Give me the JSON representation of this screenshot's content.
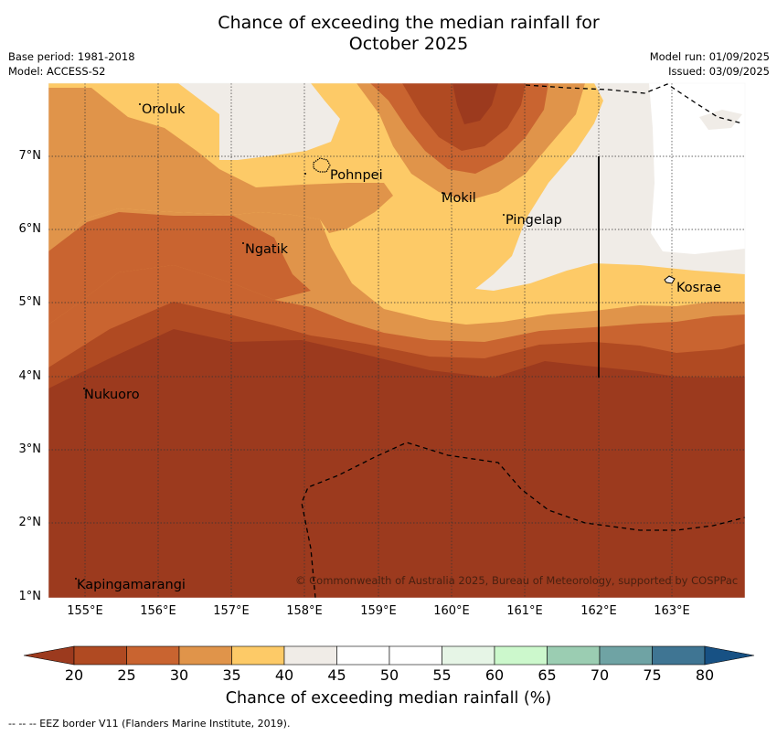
{
  "title_line1": "Chance of exceeding the median rainfall for",
  "title_line2": "October 2025",
  "meta_left": [
    "Base period: 1981-2018",
    "Model: ACCESS-S2"
  ],
  "meta_right": [
    "Model run: 01/09/2025",
    "Issued: 03/09/2025"
  ],
  "places": [
    {
      "name": "Oroluk"
    },
    {
      "name": "Pohnpei"
    },
    {
      "name": "Mokil"
    },
    {
      "name": "Pingelap"
    },
    {
      "name": "Ngatik"
    },
    {
      "name": "Kosrae"
    },
    {
      "name": "Nukuoro"
    },
    {
      "name": "Kapingamarangi"
    }
  ],
  "lat_labels": [
    "7°N",
    "6°N",
    "5°N",
    "4°N",
    "3°N",
    "2°N",
    "1°N"
  ],
  "lon_labels": [
    "155°E",
    "156°E",
    "157°E",
    "158°E",
    "159°E",
    "160°E",
    "161°E",
    "162°E",
    "163°E"
  ],
  "copyright": "© Commonwealth of Australia 2025, Bureau of Meteorology, supported by COSPPac",
  "colorbar": {
    "ticks": [
      "20",
      "25",
      "30",
      "35",
      "40",
      "45",
      "50",
      "55",
      "60",
      "65",
      "70",
      "75",
      "80"
    ],
    "colors": [
      "#9c3a1e",
      "#b04a22",
      "#c96430",
      "#e0944a",
      "#fdca67",
      "#f0ece7",
      "#ffffff",
      "#ffffff",
      "#e6f5e6",
      "#ccf8cc",
      "#9bcdb2",
      "#6fa3a4",
      "#3f7593",
      "#175184"
    ],
    "label": "Chance of exceeding median rainfall (%)"
  },
  "footer": "-- -- -- EEZ border V11 (Flanders Marine Institute, 2019)."
}
